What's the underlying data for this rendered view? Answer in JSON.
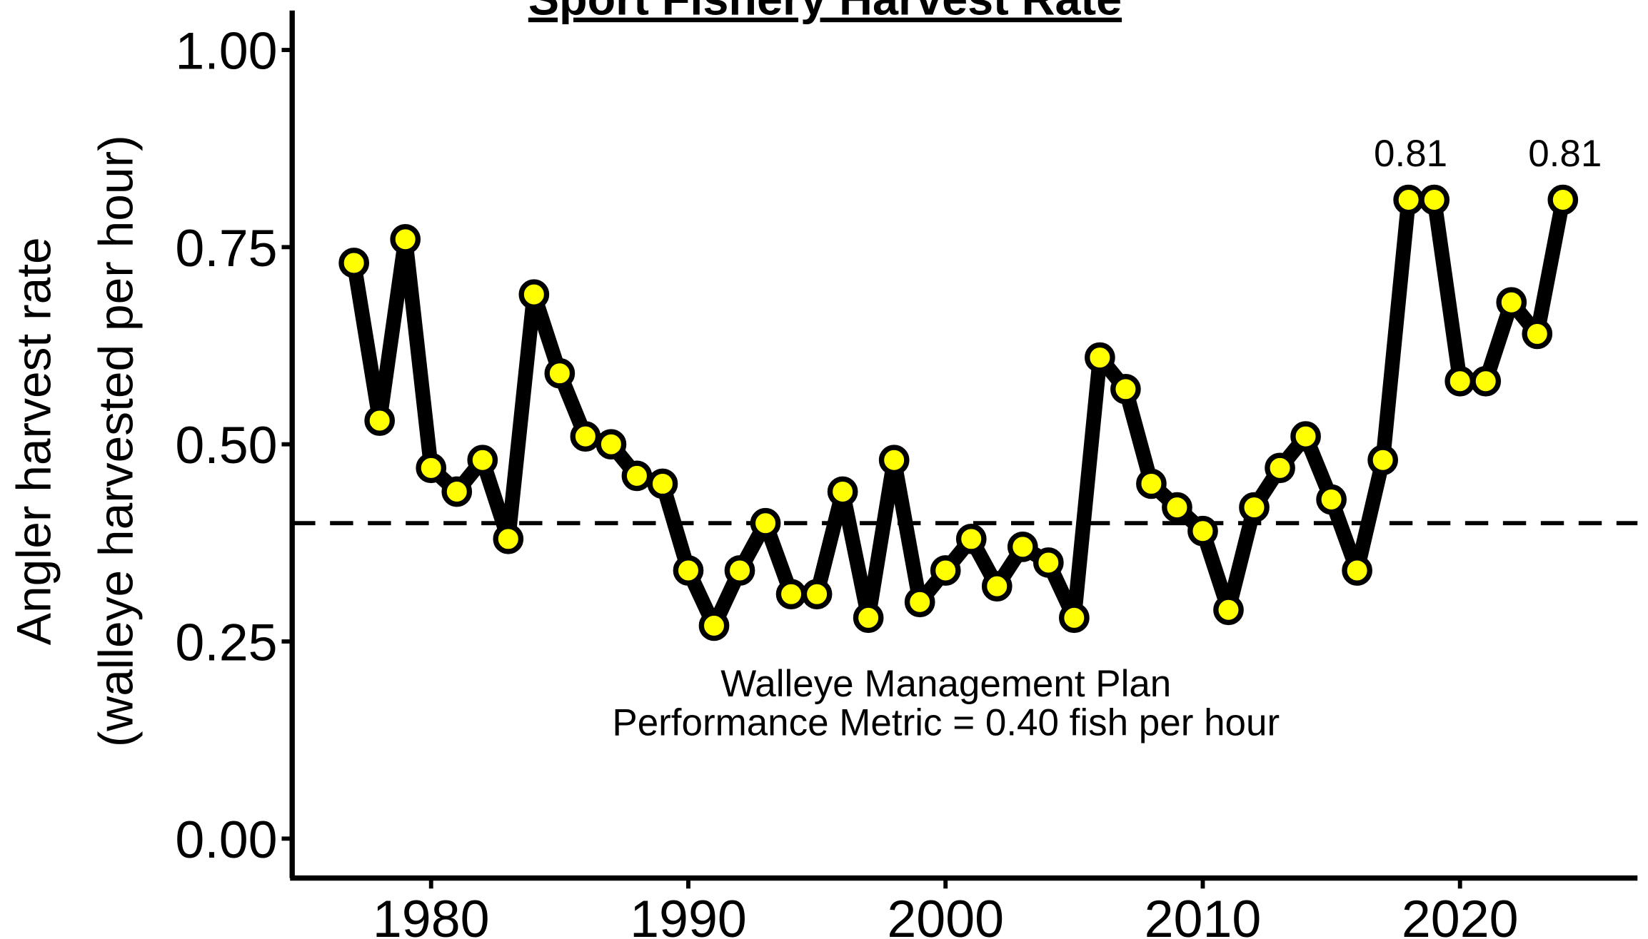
{
  "chart_data": {
    "type": "line",
    "title": "Sport Fishery Harvest Rate",
    "y_label": [
      "Angler harvest rate",
      "(walleye harvested per hour)"
    ],
    "x": [
      1977,
      1978,
      1979,
      1980,
      1981,
      1982,
      1983,
      1984,
      1985,
      1986,
      1987,
      1988,
      1989,
      1990,
      1991,
      1992,
      1993,
      1994,
      1995,
      1996,
      1997,
      1998,
      1999,
      2000,
      2001,
      2002,
      2003,
      2004,
      2005,
      2006,
      2007,
      2008,
      2009,
      2010,
      2011,
      2012,
      2013,
      2014,
      2015,
      2016,
      2017,
      2018,
      2019,
      2020,
      2021,
      2022,
      2023,
      2024
    ],
    "series": [
      {
        "name": "Angler harvest rate",
        "color": "#ffff00",
        "line_color": "#000000",
        "values": [
          0.73,
          0.53,
          0.76,
          0.47,
          0.44,
          0.48,
          0.38,
          0.69,
          0.59,
          0.51,
          0.5,
          0.46,
          0.45,
          0.34,
          0.27,
          0.34,
          0.4,
          0.31,
          0.31,
          0.44,
          0.28,
          0.48,
          0.3,
          0.34,
          0.38,
          0.32,
          0.37,
          0.35,
          0.28,
          0.61,
          0.57,
          0.45,
          0.42,
          0.39,
          0.29,
          0.42,
          0.47,
          0.51,
          0.43,
          0.34,
          0.48,
          0.81,
          0.81,
          0.58,
          0.58,
          0.68,
          0.64,
          0.81
        ],
        "value_labels": [
          null,
          null,
          null,
          null,
          null,
          null,
          null,
          null,
          null,
          null,
          null,
          null,
          null,
          null,
          null,
          null,
          null,
          null,
          null,
          null,
          null,
          null,
          null,
          null,
          null,
          null,
          null,
          null,
          null,
          null,
          null,
          null,
          null,
          null,
          null,
          null,
          null,
          null,
          null,
          null,
          null,
          "0.81",
          null,
          null,
          null,
          null,
          null,
          "0.81"
        ]
      }
    ],
    "hline": 0.4,
    "hline_annotation": [
      "Walleye Management Plan",
      "Performance Metric = 0.40 fish per hour"
    ],
    "xlim": [
      1974.6,
      2026.9
    ],
    "xticks": [
      1980,
      1990,
      2000,
      2010,
      2020
    ],
    "ylim": [
      -0.05,
      1.05
    ],
    "yticks": [
      {
        "value": 0,
        "label": "0.00"
      },
      {
        "value": 0.25,
        "label": "0.25"
      },
      {
        "value": 0.5,
        "label": "0.50"
      },
      {
        "value": 0.75,
        "label": "0.75"
      },
      {
        "value": 1,
        "label": "1.00"
      }
    ],
    "grid": false
  }
}
